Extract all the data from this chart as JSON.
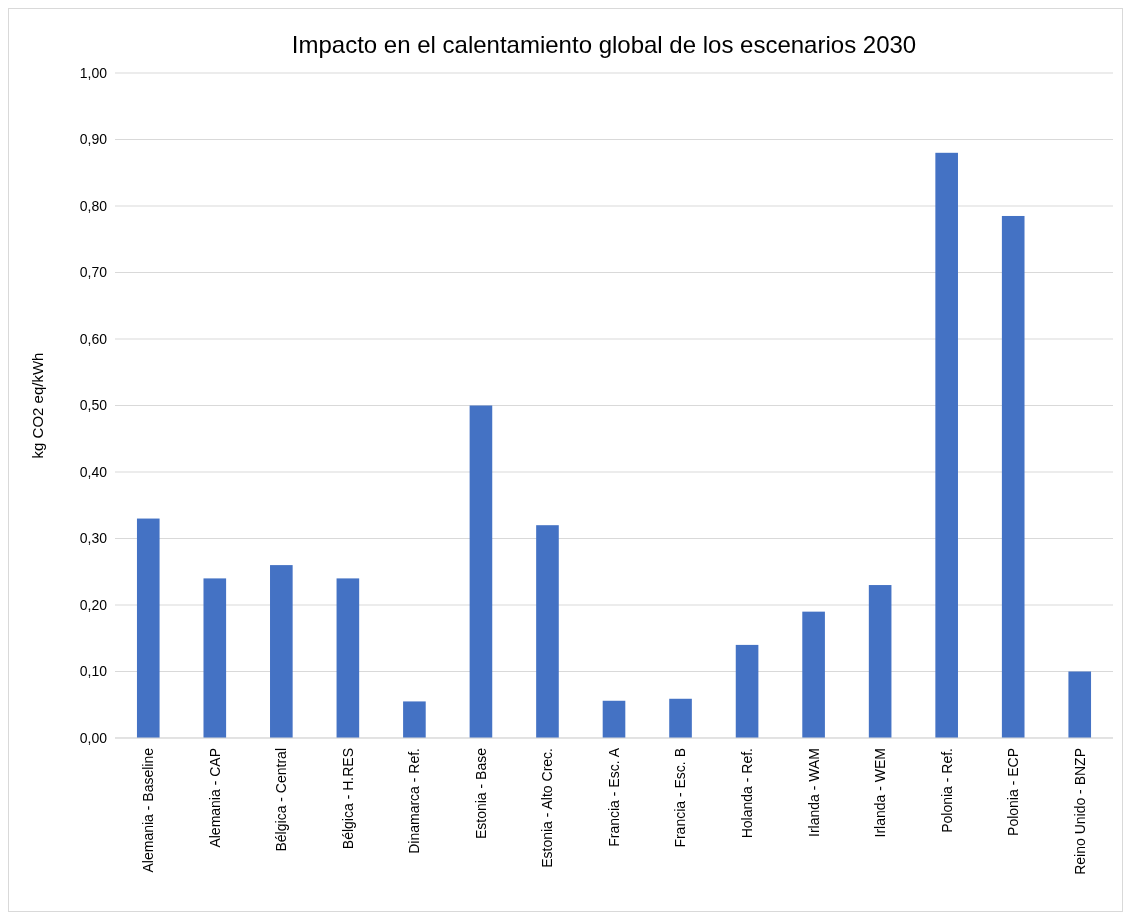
{
  "chart_data": {
    "type": "bar",
    "title": "Impacto en el calentamiento global de los escenarios 2030",
    "ylabel": "kg CO2 eq/kWh",
    "categories": [
      "Alemania - Baseline",
      "Alemania - CAP",
      "Bélgica - Central",
      "Bélgica - H.RES",
      "Dinamarca - Ref.",
      "Estonia - Base",
      "Estonia - Alto Crec.",
      "Francia - Esc. A",
      "Francia - Esc. B",
      "Holanda - Ref.",
      "Irlanda - WAM",
      "Irlanda - WEM",
      "Polonia - Ref.",
      "Polonia - ECP",
      "Reino Unido - BNZP"
    ],
    "values": [
      0.33,
      0.24,
      0.26,
      0.24,
      0.055,
      0.5,
      0.32,
      0.056,
      0.059,
      0.14,
      0.19,
      0.23,
      0.88,
      0.785,
      0.1
    ],
    "color": "#4472c4",
    "ylim": [
      0,
      1
    ],
    "yticks": [
      {
        "value": 0,
        "label": "0,00"
      },
      {
        "value": 0.1,
        "label": "0,10"
      },
      {
        "value": 0.2,
        "label": "0,20"
      },
      {
        "value": 0.3,
        "label": "0,30"
      },
      {
        "value": 0.4,
        "label": "0,40"
      },
      {
        "value": 0.5,
        "label": "0,50"
      },
      {
        "value": 0.6,
        "label": "0,60"
      },
      {
        "value": 0.7,
        "label": "0,70"
      },
      {
        "value": 0.8,
        "label": "0,80"
      },
      {
        "value": 0.9,
        "label": "0,90"
      },
      {
        "value": 1,
        "label": "1,00"
      }
    ],
    "grid": "y"
  }
}
